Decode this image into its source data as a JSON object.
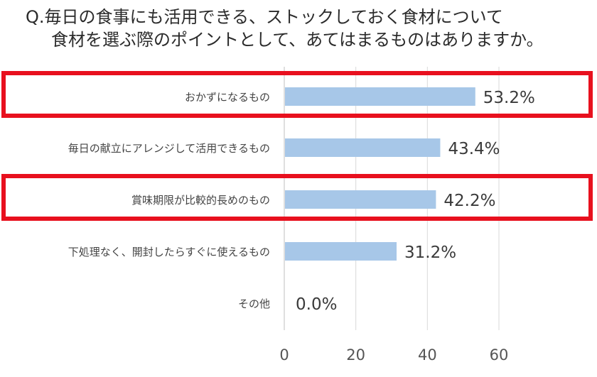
{
  "title": {
    "line1": "Q.毎日の食事にも活用できる、ストックしておく食材について",
    "line2": "食材を選ぶ際のポイントとして、あてはまるものはありますか。"
  },
  "chart_data": {
    "type": "bar",
    "orientation": "horizontal",
    "categories": [
      "おかずになるもの",
      "毎日の献立にアレンジして活用できるもの",
      "賞味期限が比較的長めのもの",
      "下処理なく、開封したらすぐに使えるもの",
      "その他"
    ],
    "values": [
      53.2,
      43.4,
      42.2,
      31.2,
      0.0
    ],
    "value_labels": [
      "53.2%",
      "43.4%",
      "42.2%",
      "31.2%",
      "0.0%"
    ],
    "xlim": [
      0,
      60
    ],
    "xticks": [
      "0",
      "20",
      "40",
      "60"
    ],
    "grid": true,
    "highlighted_categories": [
      "おかずになるもの",
      "賞味期限が比較的長めのもの"
    ],
    "colors": {
      "bar": "#a7c7e8",
      "highlight": "#e8101e",
      "grid": "#d9d9d9",
      "text": "#444444"
    }
  }
}
